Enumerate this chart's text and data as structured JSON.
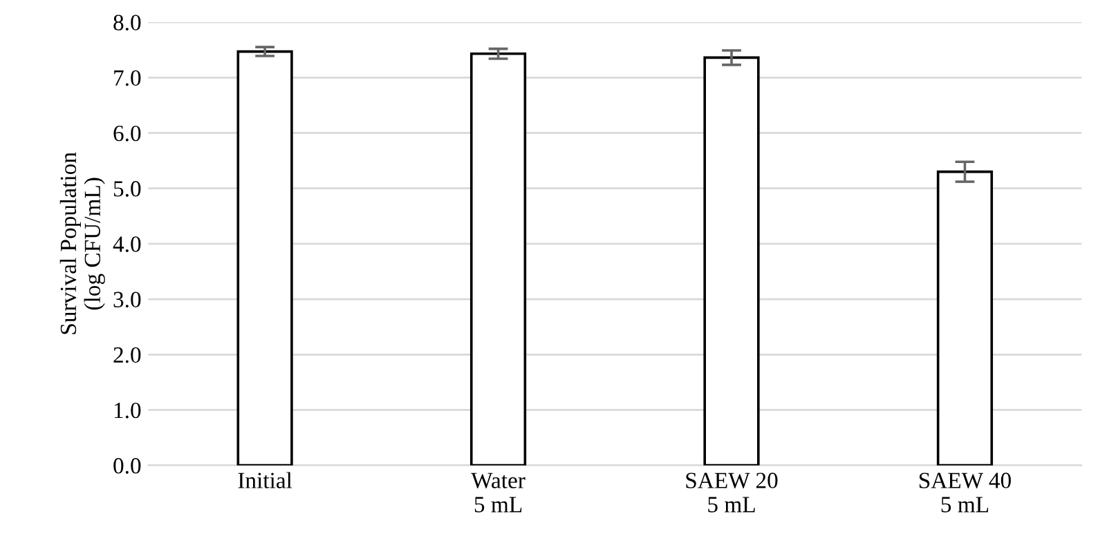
{
  "chart_data": {
    "type": "bar",
    "ylabel": "Survival Population\n(log CFU/mL)",
    "categories": [
      "Initial",
      "Water\n5 mL",
      "SAEW 20\n5 mL",
      "SAEW 40\n5 mL"
    ],
    "values": [
      7.47,
      7.43,
      7.36,
      5.3
    ],
    "errors": [
      0.08,
      0.09,
      0.13,
      0.18
    ],
    "color": "#ffffff",
    "ylim": [
      0,
      8
    ],
    "yticks": [
      {
        "value": 0,
        "label": "0.0"
      },
      {
        "value": 1,
        "label": "1.0"
      },
      {
        "value": 2,
        "label": "2.0"
      },
      {
        "value": 3,
        "label": "3.0"
      },
      {
        "value": 4,
        "label": "4.0"
      },
      {
        "value": 5,
        "label": "5.0"
      },
      {
        "value": 6,
        "label": "6.0"
      },
      {
        "value": 7,
        "label": "7.0"
      },
      {
        "value": 8,
        "label": "8.0"
      }
    ],
    "grid": "y"
  }
}
